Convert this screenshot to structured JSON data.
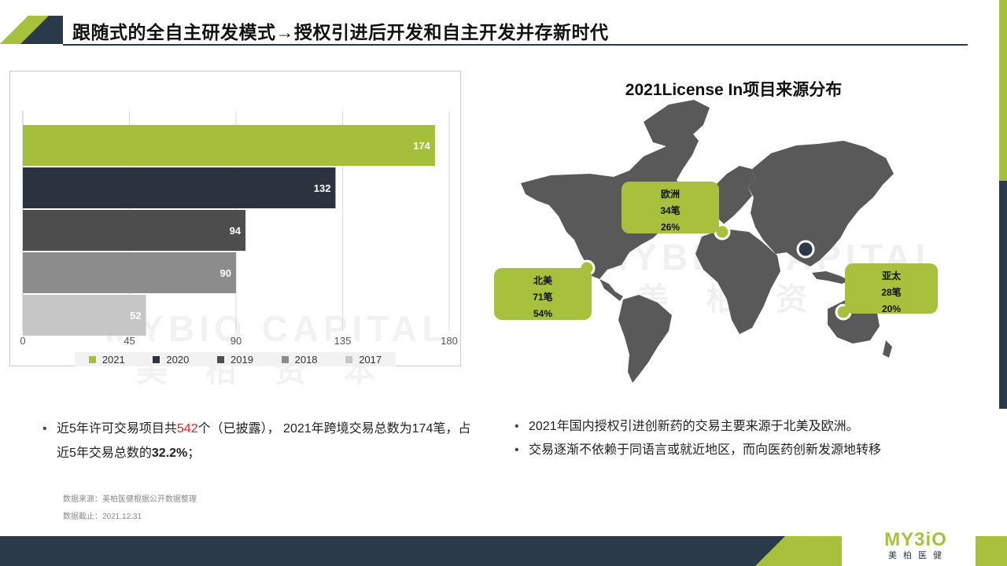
{
  "header": {
    "title": "跟随式的全自主研发模式→授权引进后开发和自主开发并存新时代"
  },
  "colors": {
    "accent_green": "#a7c13d",
    "dark_navy": "#2b3a4a",
    "red": "#e02020"
  },
  "chart_data": {
    "type": "bar",
    "orientation": "horizontal",
    "categories": [
      "2021",
      "2020",
      "2019",
      "2018",
      "2017"
    ],
    "values": [
      174,
      132,
      94,
      90,
      52
    ],
    "colors": [
      "#a5bf3d",
      "#2b3240",
      "#4d4d4d",
      "#8c8c8c",
      "#c6c6c6"
    ],
    "xticks": [
      0,
      45,
      90,
      135,
      180
    ],
    "xlim": [
      0,
      180
    ],
    "grid": true,
    "legend": [
      "2021",
      "2020",
      "2019",
      "2018",
      "2017"
    ],
    "legend_position": "bottom"
  },
  "watermark": {
    "line1": "MYBIO CAPITAL",
    "line2": "美柏资本"
  },
  "map": {
    "title": "2021License In项目来源分布",
    "callouts": [
      {
        "region": "欧洲",
        "count": "34笔",
        "percent": "26%"
      },
      {
        "region": "北美",
        "count": "71笔",
        "percent": "54%"
      },
      {
        "region": "亚太",
        "count": "28笔",
        "percent": "20%"
      }
    ]
  },
  "left_bullet": {
    "part1": "近5年许可交易项目共",
    "highlight": "542",
    "part2": "个（已披露）， 2021年跨境交易总数为174笔，占近5年交易总数的",
    "bold": "32.2%",
    "part3": "；"
  },
  "right_bullets": [
    "2021年国内授权引进创新药的交易主要来源于北美及欧洲。",
    "交易逐渐不依赖于同语言或就近地区，而向医药创新发源地转移"
  ],
  "source": {
    "line1": "数据来源：美柏医健根据公开数据整理",
    "line2": "数据截止：2021.12.31"
  },
  "logo": {
    "main": "MY3iO",
    "sub": "美柏医健"
  }
}
